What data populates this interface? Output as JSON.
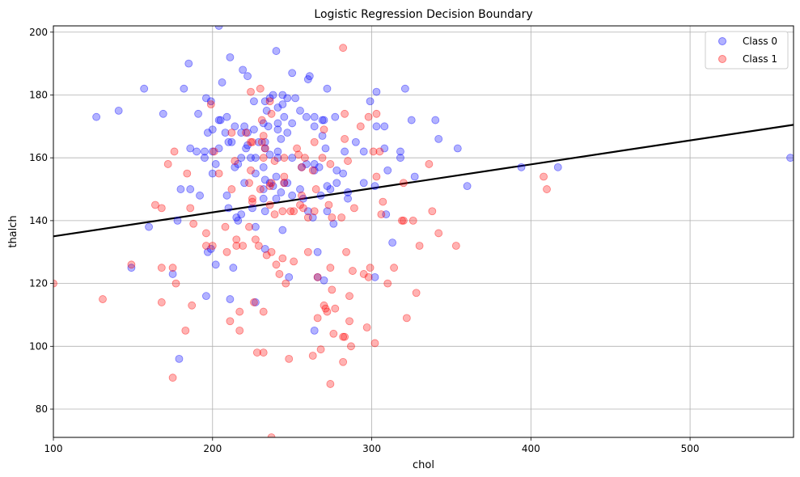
{
  "chart_data": {
    "type": "scatter",
    "title": "Logistic Regression Decision Boundary",
    "xlabel": "chol",
    "ylabel": "thalch",
    "xlim": [
      100,
      565
    ],
    "ylim": [
      71,
      202
    ],
    "xticks": [
      100,
      200,
      300,
      400,
      500
    ],
    "yticks": [
      80,
      100,
      120,
      140,
      160,
      180,
      200
    ],
    "grid": true,
    "legend_position": "top-right",
    "series": [
      {
        "name": "Class 0",
        "color": "#0000ff",
        "points": [
          [
            204,
            202
          ],
          [
            240,
            194
          ],
          [
            211,
            192
          ],
          [
            185,
            190
          ],
          [
            219,
            188
          ],
          [
            250,
            187
          ],
          [
            222,
            186
          ],
          [
            261,
            186
          ],
          [
            260,
            185
          ],
          [
            206,
            184
          ],
          [
            157,
            182
          ],
          [
            182,
            182
          ],
          [
            272,
            182
          ],
          [
            321,
            182
          ],
          [
            303,
            181
          ],
          [
            238,
            180
          ],
          [
            244,
            180
          ],
          [
            236,
            179
          ],
          [
            196,
            179
          ],
          [
            247,
            179
          ],
          [
            252,
            179
          ],
          [
            226,
            178
          ],
          [
            199,
            178
          ],
          [
            299,
            178
          ],
          [
            233,
            178
          ],
          [
            244,
            177
          ],
          [
            241,
            176
          ],
          [
            234,
            175
          ],
          [
            141,
            175
          ],
          [
            255,
            175
          ],
          [
            169,
            174
          ],
          [
            191,
            174
          ],
          [
            259,
            173
          ],
          [
            277,
            173
          ],
          [
            127,
            173
          ],
          [
            209,
            173
          ],
          [
            264,
            173
          ],
          [
            245,
            173
          ],
          [
            205,
            172
          ],
          [
            269,
            172
          ],
          [
            204,
            172
          ],
          [
            325,
            172
          ],
          [
            340,
            172
          ],
          [
            241,
            171
          ],
          [
            250,
            171
          ],
          [
            270,
            172
          ],
          [
            232,
            171
          ],
          [
            235,
            170
          ],
          [
            214,
            170
          ],
          [
            220,
            170
          ],
          [
            264,
            170
          ],
          [
            303,
            170
          ],
          [
            308,
            170
          ],
          [
            200,
            169
          ],
          [
            197,
            168
          ],
          [
            218,
            168
          ],
          [
            208,
            168
          ],
          [
            247,
            168
          ],
          [
            222,
            168
          ],
          [
            241,
            169
          ],
          [
            226,
            169
          ],
          [
            269,
            167
          ],
          [
            243,
            166
          ],
          [
            210,
            165
          ],
          [
            229,
            165
          ],
          [
            233,
            165
          ],
          [
            212,
            165
          ],
          [
            290,
            165
          ],
          [
            342,
            166
          ],
          [
            233,
            163
          ],
          [
            271,
            163
          ],
          [
            308,
            163
          ],
          [
            204,
            163
          ],
          [
            221,
            163
          ],
          [
            222,
            164
          ],
          [
            186,
            163
          ],
          [
            200,
            162
          ],
          [
            195,
            162
          ],
          [
            241,
            162
          ],
          [
            236,
            161
          ],
          [
            318,
            160
          ],
          [
            283,
            162
          ],
          [
            295,
            162
          ],
          [
            318,
            162
          ],
          [
            190,
            162
          ],
          [
            227,
            160
          ],
          [
            250,
            160
          ],
          [
            224,
            160
          ],
          [
            218,
            160
          ],
          [
            195,
            160
          ],
          [
            241,
            160
          ],
          [
            264,
            158
          ],
          [
            259,
            158
          ],
          [
            216,
            158
          ],
          [
            202,
            158
          ],
          [
            267,
            157
          ],
          [
            214,
            157
          ],
          [
            232,
            157
          ],
          [
            278,
            156
          ],
          [
            264,
            156
          ],
          [
            256,
            157
          ],
          [
            310,
            156
          ],
          [
            327,
            154
          ],
          [
            282,
            155
          ],
          [
            240,
            154
          ],
          [
            227,
            155
          ],
          [
            200,
            155
          ],
          [
            233,
            153
          ],
          [
            295,
            152
          ],
          [
            247,
            152
          ],
          [
            236,
            152
          ],
          [
            278,
            152
          ],
          [
            245,
            152
          ],
          [
            272,
            151
          ],
          [
            220,
            152
          ],
          [
            238,
            151
          ],
          [
            302,
            151
          ],
          [
            255,
            150
          ],
          [
            232,
            150
          ],
          [
            274,
            150
          ],
          [
            180,
            150
          ],
          [
            394,
            157
          ],
          [
            417,
            157
          ],
          [
            360,
            151
          ],
          [
            354,
            163
          ],
          [
            563,
            160
          ],
          [
            268,
            148
          ],
          [
            285,
            149
          ],
          [
            250,
            148
          ],
          [
            209,
            148
          ],
          [
            240,
            147
          ],
          [
            192,
            148
          ],
          [
            257,
            147
          ],
          [
            232,
            147
          ],
          [
            285,
            147
          ],
          [
            243,
            149
          ],
          [
            210,
            144
          ],
          [
            218,
            142
          ],
          [
            260,
            143
          ],
          [
            225,
            144
          ],
          [
            272,
            143
          ],
          [
            233,
            143
          ],
          [
            263,
            141
          ],
          [
            309,
            142
          ],
          [
            276,
            139
          ],
          [
            160,
            138
          ],
          [
            178,
            140
          ],
          [
            244,
            137
          ],
          [
            227,
            138
          ],
          [
            215,
            141
          ],
          [
            313,
            133
          ],
          [
            233,
            131
          ],
          [
            199,
            131
          ],
          [
            197,
            130
          ],
          [
            266,
            130
          ],
          [
            202,
            126
          ],
          [
            149,
            125
          ],
          [
            213,
            125
          ],
          [
            175,
            123
          ],
          [
            302,
            122
          ],
          [
            266,
            122
          ],
          [
            270,
            121
          ],
          [
            248,
            122
          ],
          [
            196,
            116
          ],
          [
            211,
            115
          ],
          [
            227,
            114
          ],
          [
            264,
            105
          ],
          [
            179,
            96
          ],
          [
            216,
            140
          ],
          [
            186,
            150
          ]
        ]
      },
      {
        "name": "Class 1",
        "color": "#ff0000",
        "points": [
          [
            282,
            195
          ],
          [
            230,
            182
          ],
          [
            224,
            181
          ],
          [
            236,
            178
          ],
          [
            199,
            177
          ],
          [
            303,
            174
          ],
          [
            283,
            174
          ],
          [
            237,
            174
          ],
          [
            298,
            173
          ],
          [
            231,
            172
          ],
          [
            270,
            169
          ],
          [
            221,
            168
          ],
          [
            212,
            168
          ],
          [
            232,
            167
          ],
          [
            283,
            166
          ],
          [
            224,
            165
          ],
          [
            264,
            165
          ],
          [
            225,
            165
          ],
          [
            301,
            162
          ],
          [
            305,
            162
          ],
          [
            233,
            163
          ],
          [
            176,
            162
          ],
          [
            254,
            161
          ],
          [
            245,
            160
          ],
          [
            269,
            160
          ],
          [
            214,
            159
          ],
          [
            239,
            159
          ],
          [
            274,
            158
          ],
          [
            336,
            158
          ],
          [
            172,
            158
          ],
          [
            256,
            157
          ],
          [
            224,
            156
          ],
          [
            263,
            156
          ],
          [
            184,
            155
          ],
          [
            204,
            155
          ],
          [
            245,
            154
          ],
          [
            303,
            154
          ],
          [
            237,
            152
          ],
          [
            223,
            152
          ],
          [
            320,
            152
          ],
          [
            236,
            151
          ],
          [
            230,
            150
          ],
          [
            265,
            150
          ],
          [
            307,
            146
          ],
          [
            225,
            146
          ],
          [
            255,
            145
          ],
          [
            273,
            145
          ],
          [
            164,
            145
          ],
          [
            257,
            144
          ],
          [
            249,
            143
          ],
          [
            264,
            143
          ],
          [
            168,
            144
          ],
          [
            289,
            144
          ],
          [
            186,
            144
          ],
          [
            239,
            142
          ],
          [
            306,
            142
          ],
          [
            260,
            141
          ],
          [
            326,
            140
          ],
          [
            281,
            141
          ],
          [
            275,
            141
          ],
          [
            319,
            140
          ],
          [
            208,
            138
          ],
          [
            223,
            138
          ],
          [
            188,
            139
          ],
          [
            215,
            134
          ],
          [
            227,
            134
          ],
          [
            200,
            132
          ],
          [
            219,
            132
          ],
          [
            229,
            132
          ],
          [
            251,
            127
          ],
          [
            240,
            126
          ],
          [
            260,
            130
          ],
          [
            284,
            130
          ],
          [
            299,
            125
          ],
          [
            215,
            132
          ],
          [
            237,
            130
          ],
          [
            175,
            125
          ],
          [
            168,
            125
          ],
          [
            149,
            126
          ],
          [
            209,
            130
          ],
          [
            234,
            129
          ],
          [
            353,
            132
          ],
          [
            330,
            132
          ],
          [
            274,
            125
          ],
          [
            295,
            123
          ],
          [
            244,
            128
          ],
          [
            314,
            125
          ],
          [
            328,
            117
          ],
          [
            310,
            120
          ],
          [
            288,
            124
          ],
          [
            298,
            122
          ],
          [
            266,
            122
          ],
          [
            242,
            123
          ],
          [
            246,
            120
          ],
          [
            286,
            116
          ],
          [
            275,
            118
          ],
          [
            168,
            114
          ],
          [
            131,
            115
          ],
          [
            187,
            113
          ],
          [
            226,
            114
          ],
          [
            271,
            112
          ],
          [
            277,
            112
          ],
          [
            217,
            111
          ],
          [
            232,
            111
          ],
          [
            266,
            109
          ],
          [
            282,
            103
          ],
          [
            297,
            106
          ],
          [
            322,
            109
          ],
          [
            286,
            108
          ],
          [
            183,
            105
          ],
          [
            217,
            105
          ],
          [
            211,
            108
          ],
          [
            232,
            98
          ],
          [
            248,
            96
          ],
          [
            263,
            97
          ],
          [
            268,
            99
          ],
          [
            287,
            100
          ],
          [
            302,
            101
          ],
          [
            270,
            113
          ],
          [
            272,
            111
          ],
          [
            282,
            95
          ],
          [
            175,
            90
          ],
          [
            274,
            88
          ],
          [
            237,
            71
          ],
          [
            100,
            120
          ],
          [
            177,
            120
          ],
          [
            408,
            154
          ],
          [
            410,
            150
          ],
          [
            338,
            143
          ],
          [
            342,
            136
          ],
          [
            225,
            147
          ],
          [
            232,
            160
          ],
          [
            245,
            152
          ],
          [
            251,
            143
          ],
          [
            231,
            165
          ],
          [
            253,
            163
          ],
          [
            256,
            148
          ],
          [
            285,
            159
          ],
          [
            293,
            170
          ],
          [
            320,
            140
          ],
          [
            201,
            162
          ],
          [
            196,
            136
          ],
          [
            228,
            98
          ],
          [
            276,
            104
          ],
          [
            283,
            103
          ],
          [
            258,
            160
          ],
          [
            236,
            145
          ],
          [
            244,
            143
          ],
          [
            196,
            132
          ],
          [
            212,
            150
          ]
        ]
      }
    ],
    "decision_boundary": {
      "color": "#000000",
      "points": [
        [
          100,
          135
        ],
        [
          565,
          170.5
        ]
      ]
    }
  }
}
